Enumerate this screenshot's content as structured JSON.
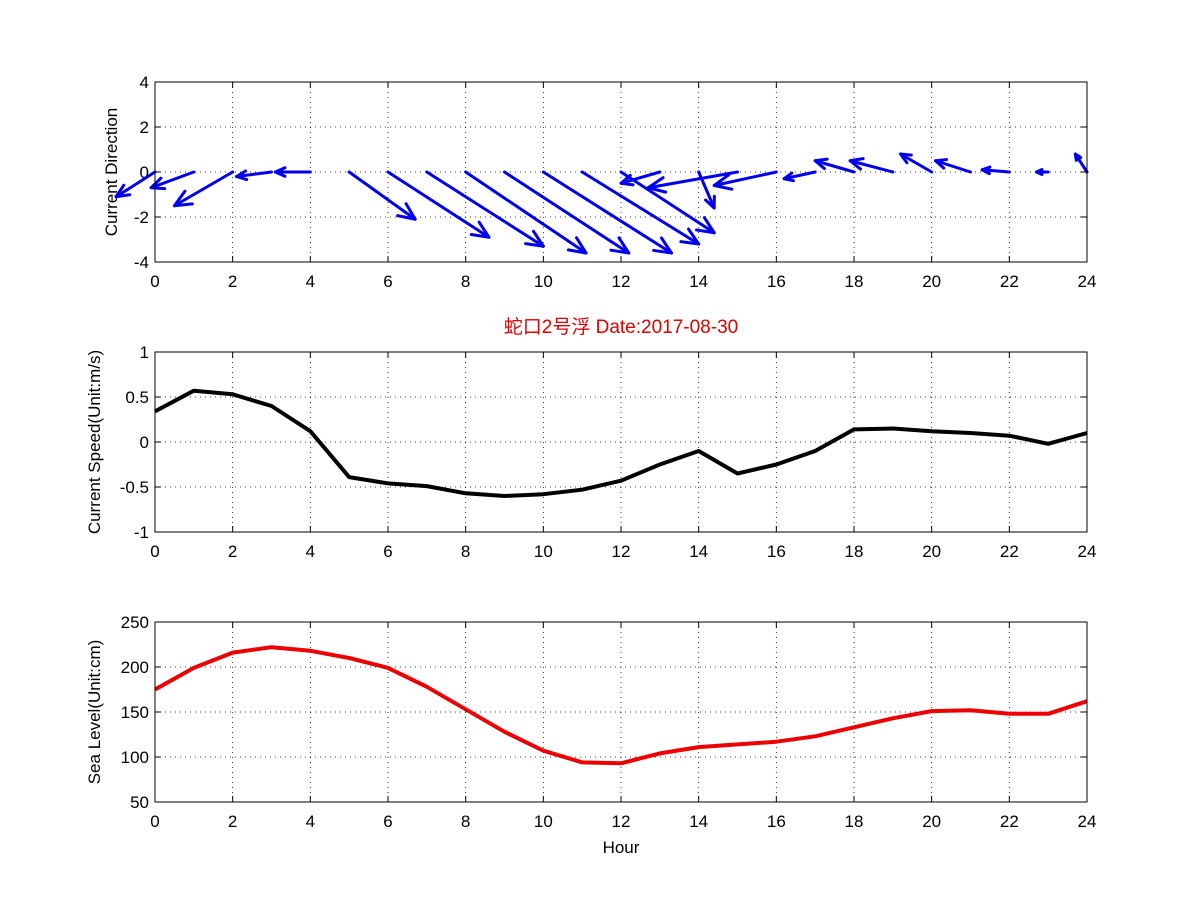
{
  "figure_title": "蛇口2号浮    Date:2017-08-30",
  "colors": {
    "arrow": "#0000ee",
    "speed": "#000000",
    "sea_level": "#ee0000",
    "title": "#e00000"
  },
  "chart_data": [
    {
      "type": "quiver",
      "name": "current-direction",
      "title": "",
      "xlabel": "",
      "ylabel": "Current Direction",
      "xlim": [
        0,
        24
      ],
      "ylim": [
        -4,
        4
      ],
      "xticks": [
        0,
        2,
        4,
        6,
        8,
        10,
        12,
        14,
        16,
        18,
        20,
        22,
        24
      ],
      "yticks": [
        -4,
        -2,
        0,
        2,
        4
      ],
      "grid": true,
      "arrows": [
        {
          "x": 0,
          "u": -1.0,
          "v": -1.1
        },
        {
          "x": 1,
          "u": -1.1,
          "v": -0.7
        },
        {
          "x": 2,
          "u": -1.5,
          "v": -1.5
        },
        {
          "x": 3,
          "u": -0.9,
          "v": -0.2
        },
        {
          "x": 4,
          "u": -0.9,
          "v": 0.0
        },
        {
          "x": 5,
          "u": 1.7,
          "v": -2.1
        },
        {
          "x": 6,
          "u": 2.6,
          "v": -2.9
        },
        {
          "x": 7,
          "u": 3.0,
          "v": -3.3
        },
        {
          "x": 8,
          "u": 3.1,
          "v": -3.6
        },
        {
          "x": 9,
          "u": 3.2,
          "v": -3.6
        },
        {
          "x": 10,
          "u": 3.3,
          "v": -3.6
        },
        {
          "x": 11,
          "u": 3.0,
          "v": -3.2
        },
        {
          "x": 12,
          "u": 2.4,
          "v": -2.7
        },
        {
          "x": 13,
          "u": -1.0,
          "v": -0.5
        },
        {
          "x": 14,
          "u": 0.4,
          "v": -1.6
        },
        {
          "x": 15,
          "u": -2.3,
          "v": -0.7
        },
        {
          "x": 16,
          "u": -1.6,
          "v": -0.6
        },
        {
          "x": 17,
          "u": -0.8,
          "v": -0.3
        },
        {
          "x": 18,
          "u": -1.0,
          "v": 0.5
        },
        {
          "x": 19,
          "u": -1.1,
          "v": 0.5
        },
        {
          "x": 20,
          "u": -0.8,
          "v": 0.8
        },
        {
          "x": 21,
          "u": -0.9,
          "v": 0.5
        },
        {
          "x": 22,
          "u": -0.7,
          "v": 0.1
        },
        {
          "x": 23,
          "u": -0.3,
          "v": 0.0
        },
        {
          "x": 24,
          "u": -0.3,
          "v": 0.8
        }
      ]
    },
    {
      "type": "line",
      "name": "current-speed",
      "title": "蛇口2号浮    Date:2017-08-30",
      "xlabel": "",
      "ylabel": "Current Speed(Unit:m/s)",
      "xlim": [
        0,
        24
      ],
      "ylim": [
        -1,
        1
      ],
      "xticks": [
        0,
        2,
        4,
        6,
        8,
        10,
        12,
        14,
        16,
        18,
        20,
        22,
        24
      ],
      "yticks": [
        -1,
        -0.5,
        0,
        0.5,
        1
      ],
      "grid": true,
      "x": [
        0,
        1,
        2,
        3,
        4,
        5,
        6,
        7,
        8,
        9,
        10,
        11,
        12,
        13,
        14,
        15,
        16,
        17,
        18,
        19,
        20,
        21,
        22,
        23,
        24
      ],
      "y": [
        0.34,
        0.57,
        0.53,
        0.4,
        0.12,
        -0.39,
        -0.46,
        -0.49,
        -0.57,
        -0.6,
        -0.58,
        -0.53,
        -0.43,
        -0.25,
        -0.1,
        -0.35,
        -0.25,
        -0.1,
        0.14,
        0.15,
        0.12,
        0.1,
        0.07,
        -0.02,
        0.1
      ],
      "series_name": "Current Speed"
    },
    {
      "type": "line",
      "name": "sea-level",
      "title": "",
      "xlabel": "Hour",
      "ylabel": "Sea Level(Unit:cm)",
      "xlim": [
        0,
        24
      ],
      "ylim": [
        50,
        250
      ],
      "xticks": [
        0,
        2,
        4,
        6,
        8,
        10,
        12,
        14,
        16,
        18,
        20,
        22,
        24
      ],
      "yticks": [
        50,
        100,
        150,
        200,
        250
      ],
      "grid": true,
      "x": [
        0,
        1,
        2,
        3,
        4,
        5,
        6,
        7,
        8,
        9,
        10,
        11,
        12,
        13,
        14,
        15,
        16,
        17,
        18,
        19,
        20,
        21,
        22,
        23,
        24
      ],
      "y": [
        175,
        199,
        216,
        222,
        218,
        210,
        199,
        178,
        153,
        128,
        107,
        94,
        93,
        104,
        111,
        114,
        117,
        123,
        133,
        143,
        151,
        152,
        148,
        148,
        162
      ],
      "series_name": "Sea Level"
    }
  ]
}
